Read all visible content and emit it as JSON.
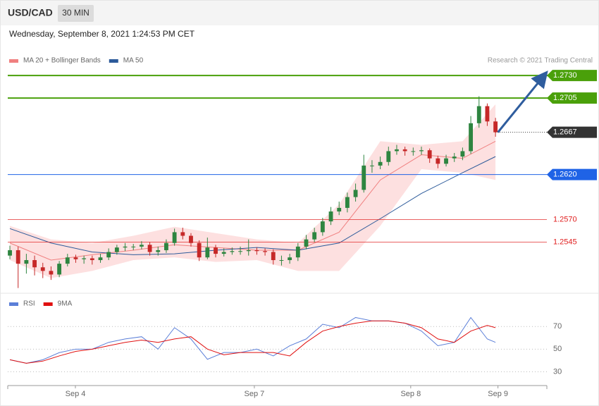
{
  "header": {
    "title": "USD/CAD",
    "timeframe": "30 MIN",
    "datetime": "Wednesday, September 8, 2021 1:24:53 PM CET"
  },
  "chart_data": [
    {
      "type": "candlestick",
      "source": "Research © 2021 Trading Central",
      "legend": "top-left",
      "xlim": [
        -0.26,
        65.24
      ],
      "ylim": [
        1.2489,
        1.2763
      ],
      "up_color": "#2e8540",
      "down_color": "#c62828",
      "candles": {
        "open": [
          1.253,
          1.2536,
          1.2521,
          1.2525,
          1.2517,
          1.2513,
          1.2509,
          1.2521,
          1.2528,
          1.2526,
          1.2527,
          1.2525,
          1.2528,
          1.2534,
          1.2539,
          1.254,
          1.254,
          1.2542,
          1.2534,
          1.2536,
          1.2544,
          1.2556,
          1.2552,
          1.2544,
          1.2528,
          1.2539,
          1.2532,
          1.2534,
          1.2535,
          1.2535,
          1.2536,
          1.2535,
          1.2534,
          1.2525,
          1.2525,
          1.2528,
          1.254,
          1.2548,
          1.2556,
          1.2568,
          1.2579,
          1.2583,
          1.2595,
          1.2603,
          1.263,
          1.263,
          1.2634,
          1.2646,
          1.2648,
          1.2646,
          1.2646,
          1.2647,
          1.2638,
          1.2632,
          1.2638,
          1.264,
          1.2646,
          1.2677,
          1.2696,
          1.2679
        ],
        "high": [
          1.2541,
          1.254,
          1.2532,
          1.253,
          1.2522,
          1.2518,
          1.2524,
          1.2532,
          1.2531,
          1.253,
          1.253,
          1.2532,
          1.2538,
          1.2542,
          1.2544,
          1.2543,
          1.2546,
          1.2545,
          1.254,
          1.2548,
          1.256,
          1.2561,
          1.2555,
          1.2547,
          1.255,
          1.2542,
          1.2538,
          1.2539,
          1.254,
          1.2548,
          1.2539,
          1.2538,
          1.2537,
          1.253,
          1.2532,
          1.2544,
          1.2553,
          1.2561,
          1.2572,
          1.2584,
          1.259,
          1.26,
          1.261,
          1.2642,
          1.2636,
          1.264,
          1.2651,
          1.2653,
          1.2651,
          1.265,
          1.2651,
          1.2649,
          1.2641,
          1.2642,
          1.2644,
          1.265,
          1.2685,
          1.2707,
          1.2699,
          1.2683
        ],
        "low": [
          1.2526,
          1.2494,
          1.251,
          1.2508,
          1.2505,
          1.2503,
          1.2506,
          1.2518,
          1.2522,
          1.2521,
          1.252,
          1.2522,
          1.2525,
          1.2531,
          1.2535,
          1.2536,
          1.2537,
          1.253,
          1.253,
          1.2533,
          1.2541,
          1.2548,
          1.254,
          1.2524,
          1.2526,
          1.2528,
          1.2529,
          1.2531,
          1.2531,
          1.253,
          1.2531,
          1.253,
          1.252,
          1.2519,
          1.2521,
          1.2524,
          1.2537,
          1.2545,
          1.2552,
          1.2564,
          1.2575,
          1.2578,
          1.259,
          1.26,
          1.2622,
          1.2626,
          1.263,
          1.2642,
          1.2641,
          1.2641,
          1.2642,
          1.2633,
          1.2627,
          1.2629,
          1.2634,
          1.2636,
          1.2643,
          1.2672,
          1.2674,
          1.2662
        ],
        "close": [
          1.2536,
          1.2521,
          1.2525,
          1.2517,
          1.2513,
          1.2509,
          1.2521,
          1.2528,
          1.2526,
          1.2527,
          1.2525,
          1.2528,
          1.2534,
          1.2539,
          1.254,
          1.254,
          1.2542,
          1.2534,
          1.2536,
          1.2544,
          1.2556,
          1.2552,
          1.2544,
          1.2528,
          1.2539,
          1.2532,
          1.2534,
          1.2535,
          1.2535,
          1.2536,
          1.2535,
          1.2534,
          1.2525,
          1.2525,
          1.2528,
          1.254,
          1.2548,
          1.2556,
          1.2568,
          1.2579,
          1.2583,
          1.2595,
          1.2603,
          1.263,
          1.263,
          1.2634,
          1.2646,
          1.2648,
          1.2646,
          1.2646,
          1.2647,
          1.2638,
          1.2632,
          1.2638,
          1.264,
          1.2646,
          1.2677,
          1.2696,
          1.2679,
          1.2667
        ]
      },
      "series": [
        {
          "name": "MA 20 + Bollinger Bands",
          "color": "#f08080",
          "band_color": "#fde0e0",
          "x": [
            0,
            5,
            10,
            15,
            20,
            25,
            30,
            35,
            40,
            45,
            50,
            55,
            59
          ],
          "values": [
            1.2544,
            1.2525,
            1.2531,
            1.2536,
            1.2542,
            1.2539,
            1.2536,
            1.2536,
            1.2556,
            1.2614,
            1.2642,
            1.2638,
            1.2657
          ],
          "upper": [
            1.2563,
            1.2548,
            1.2544,
            1.2552,
            1.2562,
            1.2555,
            1.2548,
            1.2544,
            1.2587,
            1.2657,
            1.2653,
            1.2657,
            1.2698
          ],
          "lower": [
            1.2525,
            1.2505,
            1.2513,
            1.2525,
            1.2528,
            1.2523,
            1.2525,
            1.2513,
            1.2513,
            1.2563,
            1.2626,
            1.2622,
            1.2614
          ]
        },
        {
          "name": "MA 50",
          "color": "#2c5a9a",
          "x": [
            0,
            5,
            10,
            15,
            20,
            25,
            30,
            35,
            40,
            45,
            50,
            55,
            59
          ],
          "values": [
            1.256,
            1.2544,
            1.2534,
            1.2531,
            1.2532,
            1.2536,
            1.2539,
            1.2536,
            1.2544,
            1.2571,
            1.2599,
            1.2622,
            1.264
          ]
        }
      ],
      "levels": [
        {
          "value": 1.273,
          "label": "1.2730",
          "color": "#4aa00a",
          "style": "tag",
          "line": "solid"
        },
        {
          "value": 1.2705,
          "label": "1.2705",
          "color": "#4aa00a",
          "style": "tag",
          "line": "solid"
        },
        {
          "value": 1.2667,
          "label": "1.2667",
          "color": "#333333",
          "style": "tag",
          "line": "dotted"
        },
        {
          "value": 1.262,
          "label": "1.2620",
          "color": "#1f63e6",
          "style": "tag",
          "line": "solid"
        },
        {
          "value": 1.257,
          "label": "1.2570",
          "color": "#e02020",
          "style": "text",
          "line": "thin"
        },
        {
          "value": 1.2545,
          "label": "1.2545",
          "color": "#e02020",
          "style": "text",
          "line": "thin"
        }
      ],
      "arrow": {
        "x": [
          59.3,
          64.9
        ],
        "y": [
          1.2667,
          1.273
        ],
        "color": "#2f5d9e"
      }
    },
    {
      "type": "line",
      "legend": "top-left",
      "grid": true,
      "xlim": [
        -0.26,
        65.24
      ],
      "ylim": [
        19,
        97
      ],
      "yticks": [
        30,
        50,
        70
      ],
      "xticks": [
        {
          "value": 7.96,
          "label": "Sep 4"
        },
        {
          "value": 29.7,
          "label": "Sep 7"
        },
        {
          "value": 48.7,
          "label": "Sep 8"
        },
        {
          "value": 59.3,
          "label": "Sep 9"
        }
      ],
      "series": [
        {
          "name": "RSI",
          "color": "#5b7fd8",
          "x": [
            0,
            2,
            4,
            6,
            8,
            10,
            12,
            14,
            16,
            18,
            20,
            22,
            24,
            26,
            28,
            30,
            32,
            34,
            36,
            38,
            40,
            42,
            44,
            46,
            48,
            50,
            52,
            54,
            56,
            58,
            59
          ],
          "values": [
            40.6,
            37.5,
            40.6,
            46.9,
            50,
            50,
            56,
            59,
            61,
            50,
            69,
            59,
            41,
            47,
            47,
            50,
            44,
            53,
            59,
            72,
            69,
            78,
            75,
            75,
            73,
            66,
            53,
            56,
            78,
            59,
            56
          ]
        },
        {
          "name": "9MA",
          "color": "#e01010",
          "x": [
            0,
            2,
            4,
            6,
            8,
            10,
            12,
            14,
            16,
            18,
            20,
            22,
            24,
            26,
            28,
            30,
            32,
            34,
            36,
            38,
            40,
            42,
            44,
            46,
            48,
            50,
            52,
            54,
            56,
            58,
            59
          ],
          "values": [
            40.6,
            37.5,
            39.4,
            44,
            48,
            50,
            53,
            56,
            58,
            56,
            59,
            61,
            50,
            45,
            47,
            47,
            47,
            44,
            56,
            66,
            70,
            73,
            75,
            75,
            73,
            69,
            59,
            56,
            66,
            71,
            69
          ]
        }
      ]
    }
  ]
}
